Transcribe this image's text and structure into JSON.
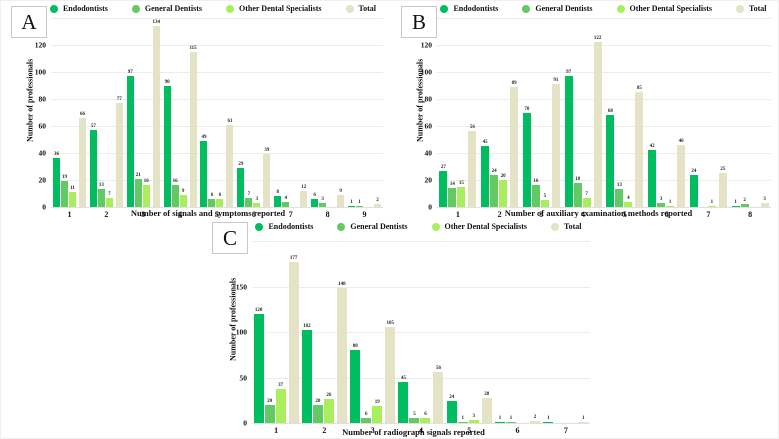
{
  "figure_title": "",
  "chart_data": [
    {
      "type": "bar",
      "panel_label": "A",
      "xlabel": "Number of signals and symptoms reported",
      "ylabel": "Number of professionals",
      "ylim": [
        0,
        140
      ],
      "yticks": [
        0,
        20,
        40,
        60,
        80,
        100,
        120,
        140
      ],
      "categories": [
        "1",
        "2",
        "3",
        "4",
        "5",
        "6",
        "7",
        "8",
        "9"
      ],
      "grid": true,
      "legend_position": "top",
      "series": [
        {
          "name": "Endodontists",
          "color": "#00BE5F",
          "values": [
            36,
            57,
            97,
            90,
            49,
            29,
            8,
            6,
            1
          ]
        },
        {
          "name": "General Dentists",
          "color": "#63C963",
          "values": [
            19,
            13,
            21,
            16,
            6,
            7,
            4,
            3,
            1
          ]
        },
        {
          "name": "Other Dental Specialists",
          "color": "#A9EF5D",
          "values": [
            11,
            7,
            16,
            9,
            6,
            3,
            0,
            0,
            0
          ]
        },
        {
          "name": "Total",
          "color": "#E4E3C6",
          "values": [
            66,
            77,
            134,
            115,
            61,
            39,
            12,
            9,
            2
          ]
        }
      ]
    },
    {
      "type": "bar",
      "panel_label": "B",
      "xlabel": "Number of auxiliary examination methods reported",
      "ylabel": "Number of professionals",
      "ylim": [
        0,
        140
      ],
      "yticks": [
        0,
        20,
        40,
        60,
        80,
        100,
        120,
        140
      ],
      "categories": [
        "1",
        "2",
        "3",
        "4",
        "5",
        "6",
        "7",
        "8"
      ],
      "grid": true,
      "legend_position": "top",
      "series": [
        {
          "name": "Endodontists",
          "color": "#00BE5F",
          "values": [
            27,
            45,
            70,
            97,
            68,
            42,
            24,
            1
          ]
        },
        {
          "name": "General Dentists",
          "color": "#63C963",
          "values": [
            14,
            24,
            16,
            18,
            13,
            3,
            0,
            2
          ]
        },
        {
          "name": "Other Dental Specialists",
          "color": "#A9EF5D",
          "values": [
            15,
            20,
            5,
            7,
            4,
            1,
            1,
            0
          ]
        },
        {
          "name": "Total",
          "color": "#E4E3C6",
          "values": [
            56,
            89,
            91,
            122,
            85,
            46,
            25,
            3
          ]
        }
      ]
    },
    {
      "type": "bar",
      "panel_label": "C",
      "xlabel": "Number of radiograph signals reported",
      "ylabel": "Number of professionals",
      "ylim": [
        0,
        200
      ],
      "yticks": [
        0,
        50,
        100,
        150,
        200
      ],
      "categories": [
        "1",
        "2",
        "3",
        "4",
        "5",
        "6",
        "7"
      ],
      "grid": true,
      "legend_position": "top",
      "series": [
        {
          "name": "Endodontists",
          "color": "#00BE5F",
          "values": [
            120,
            102,
            80,
            45,
            24,
            1,
            1
          ]
        },
        {
          "name": "General Dentists",
          "color": "#63C963",
          "values": [
            20,
            20,
            6,
            5,
            1,
            1,
            0
          ]
        },
        {
          "name": "Other Dental Specialists",
          "color": "#A9EF5D",
          "values": [
            37,
            26,
            19,
            6,
            3,
            0,
            0
          ]
        },
        {
          "name": "Total",
          "color": "#E4E3C6",
          "values": [
            177,
            148,
            105,
            56,
            28,
            2,
            1
          ]
        }
      ]
    }
  ]
}
